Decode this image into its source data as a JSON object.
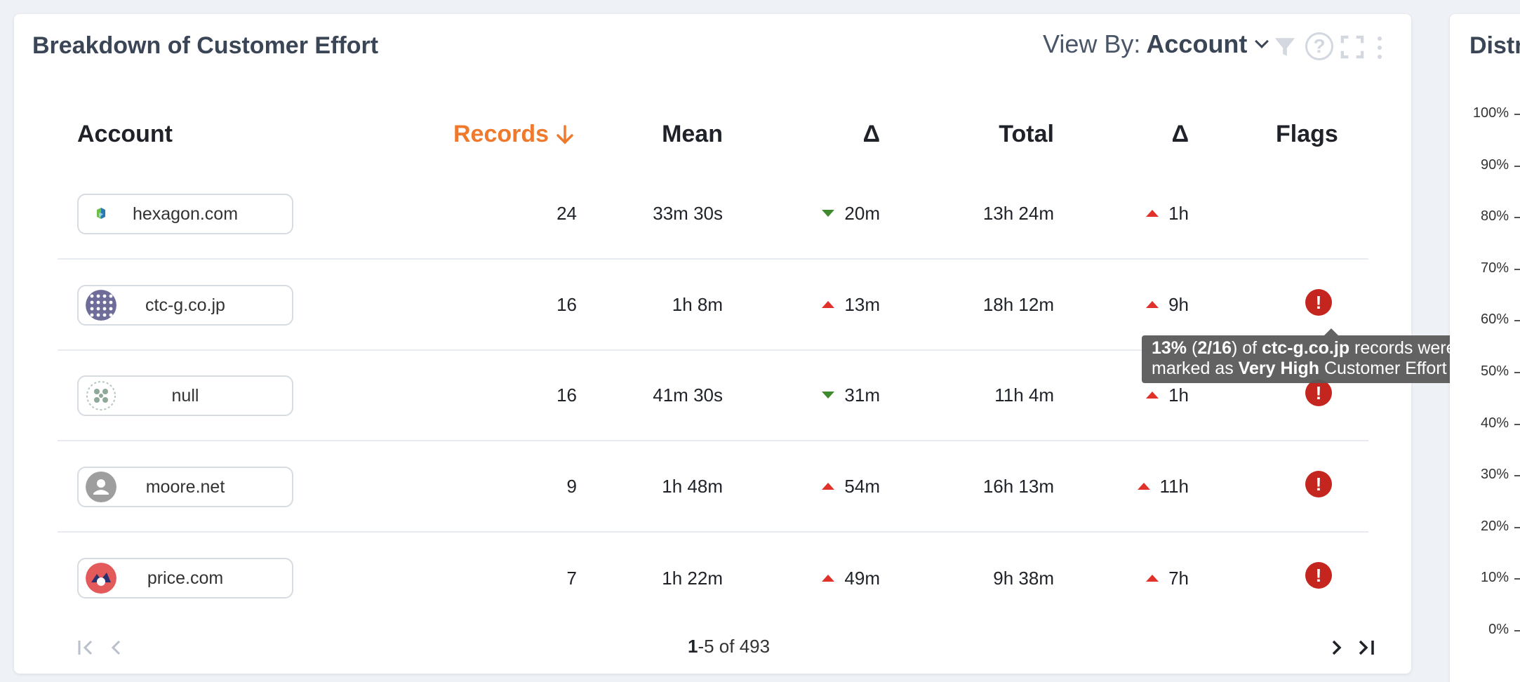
{
  "panel": {
    "title": "Breakdown of Customer Effort",
    "view_by_label": "View By:",
    "view_by_value": "Account"
  },
  "table": {
    "headers": {
      "account": "Account",
      "records": "Records",
      "mean": "Mean",
      "mean_delta": "Δ",
      "total": "Total",
      "total_delta": "Δ",
      "flags": "Flags"
    },
    "sort": {
      "column": "records",
      "direction": "desc"
    },
    "rows": [
      {
        "account": "hexagon.com",
        "logo": "hexagon-logo",
        "records": "24",
        "mean": "33m 30s",
        "mean_delta": "20m",
        "mean_delta_dir": "down",
        "total": "13h 24m",
        "total_delta": "1h",
        "total_delta_dir": "up",
        "flag": false
      },
      {
        "account": "ctc-g.co.jp",
        "logo": "ctc-logo",
        "records": "16",
        "mean": "1h 8m",
        "mean_delta": "13m",
        "mean_delta_dir": "up",
        "total": "18h 12m",
        "total_delta": "9h",
        "total_delta_dir": "up",
        "flag": true
      },
      {
        "account": "null",
        "logo": "null-logo",
        "records": "16",
        "mean": "41m 30s",
        "mean_delta": "31m",
        "mean_delta_dir": "down",
        "total": "11h 4m",
        "total_delta": "1h",
        "total_delta_dir": "up",
        "flag": true
      },
      {
        "account": "moore.net",
        "logo": "person-avatar",
        "records": "9",
        "mean": "1h 48m",
        "mean_delta": "54m",
        "mean_delta_dir": "up",
        "total": "16h 13m",
        "total_delta": "11h",
        "total_delta_dir": "up",
        "flag": true
      },
      {
        "account": "price.com",
        "logo": "price-logo",
        "records": "7",
        "mean": "1h 22m",
        "mean_delta": "49m",
        "mean_delta_dir": "up",
        "total": "9h 38m",
        "total_delta": "7h",
        "total_delta_dir": "up",
        "flag": true
      }
    ],
    "flag_glyph": "!"
  },
  "tooltip": {
    "pct": "13%",
    "open_paren": " (",
    "ratio": "2/16",
    "close_paren": ")",
    "of": " of ",
    "account": "ctc-g.co.jp",
    "after_account": " records were marked as ",
    "level": "Very High",
    "suffix": " Customer Effort"
  },
  "pagination": {
    "range_start": "1",
    "range_rest": "-5 of 493"
  },
  "right_panel": {
    "title_fragment": "Distr",
    "y_ticks": [
      "100%",
      "90%",
      "80%",
      "70%",
      "60%",
      "50%",
      "40%",
      "30%",
      "20%",
      "10%",
      "0%"
    ]
  },
  "colors": {
    "accent_sort": "#ef7a2e",
    "delta_up": "#e0312b",
    "delta_down": "#3f8a2e",
    "flag": "#c4261f"
  }
}
